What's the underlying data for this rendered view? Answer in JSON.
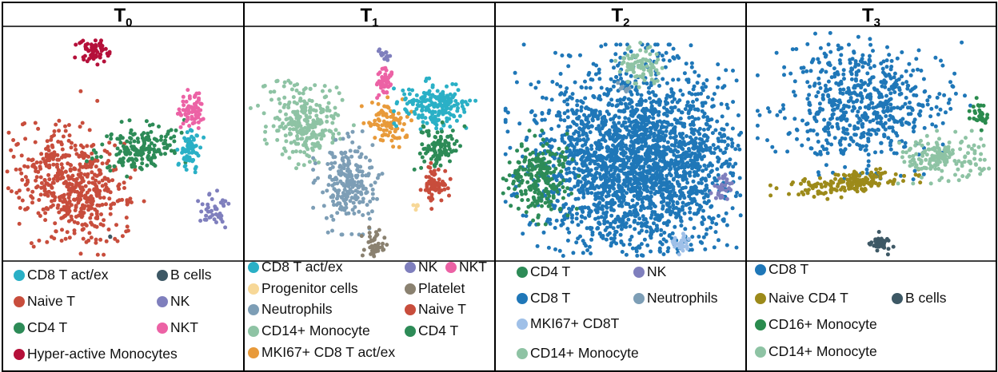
{
  "colors": {
    "CD8 T act/ex": "#2ab0c6",
    "B cells": "#3d5865",
    "Naive T": "#c84d3c",
    "NK": "#7f7fbd",
    "CD4 T": "#2d8b57",
    "NKT": "#ec62a5",
    "Hyper-active Monocytes": "#b5103a",
    "Progenitor cells": "#f7d898",
    "Platelet": "#8a8170",
    "Neutrophils": "#7d9eb6",
    "CD14+ Monocyte": "#8ec3a4",
    "MKI67+ CD8 T act/ex": "#e89a3a",
    "CD8 T": "#1f77b8",
    "MKI67+ CD8T": "#9fc0e8",
    "Naive CD4 T": "#9c8a1a",
    "CD16+ Monocyte": "#2a8b4e"
  },
  "chart_data": [
    {
      "type": "scatter",
      "title": "T",
      "subscript": "0",
      "legend": [
        "CD8 T act/ex",
        "B cells",
        "Naive T",
        "NK",
        "CD4 T",
        "NKT",
        "Hyper-active Monocytes"
      ],
      "clusters": [
        {
          "label": "Naive T",
          "x": 0.28,
          "y": 0.68,
          "sx": 0.11,
          "sy": 0.13,
          "rot": -0.55,
          "n": 520
        },
        {
          "label": "CD4 T",
          "x": 0.57,
          "y": 0.52,
          "sx": 0.09,
          "sy": 0.05,
          "rot": -0.2,
          "n": 180
        },
        {
          "label": "Hyper-active Monocytes",
          "x": 0.37,
          "y": 0.09,
          "sx": 0.03,
          "sy": 0.025,
          "rot": 0,
          "n": 70
        },
        {
          "label": "NKT",
          "x": 0.79,
          "y": 0.35,
          "sx": 0.025,
          "sy": 0.04,
          "rot": 0,
          "n": 70
        },
        {
          "label": "CD8 T act/ex",
          "x": 0.79,
          "y": 0.52,
          "sx": 0.025,
          "sy": 0.05,
          "rot": 0,
          "n": 70
        },
        {
          "label": "NK",
          "x": 0.89,
          "y": 0.8,
          "sx": 0.03,
          "sy": 0.035,
          "rot": 0,
          "n": 40
        },
        {
          "label": "B cells",
          "x": 0.45,
          "y": 0.92,
          "sx": 0.004,
          "sy": 0.004,
          "rot": 0,
          "n": 2
        }
      ]
    },
    {
      "type": "scatter",
      "title": "T",
      "subscript": "1",
      "legend": [
        "CD8 T act/ex",
        "NK",
        "NKT",
        "Progenitor cells",
        "Platelet",
        "Neutrophils",
        "Naive T",
        "CD14+ Monocyte",
        "CD4 T",
        "MKI67+ CD8 T act/ex"
      ],
      "clusters": [
        {
          "label": "CD14+ Monocyte",
          "x": 0.23,
          "y": 0.4,
          "sx": 0.07,
          "sy": 0.08,
          "rot": -0.4,
          "n": 260
        },
        {
          "label": "Neutrophils",
          "x": 0.41,
          "y": 0.67,
          "sx": 0.055,
          "sy": 0.09,
          "rot": 0,
          "n": 230
        },
        {
          "label": "MKI67+ CD8 T act/ex",
          "x": 0.57,
          "y": 0.41,
          "sx": 0.04,
          "sy": 0.05,
          "rot": 0,
          "n": 90
        },
        {
          "label": "CD8 T act/ex",
          "x": 0.77,
          "y": 0.33,
          "sx": 0.065,
          "sy": 0.05,
          "rot": 0,
          "n": 190
        },
        {
          "label": "CD4 T",
          "x": 0.79,
          "y": 0.52,
          "sx": 0.04,
          "sy": 0.045,
          "rot": 0,
          "n": 100
        },
        {
          "label": "Naive T",
          "x": 0.77,
          "y": 0.69,
          "sx": 0.025,
          "sy": 0.04,
          "rot": 0,
          "n": 70
        },
        {
          "label": "NKT",
          "x": 0.56,
          "y": 0.22,
          "sx": 0.02,
          "sy": 0.035,
          "rot": 0,
          "n": 50
        },
        {
          "label": "NK",
          "x": 0.56,
          "y": 0.11,
          "sx": 0.012,
          "sy": 0.012,
          "rot": 0,
          "n": 15
        },
        {
          "label": "Platelet",
          "x": 0.52,
          "y": 0.95,
          "sx": 0.02,
          "sy": 0.03,
          "rot": 0,
          "n": 40
        },
        {
          "label": "Progenitor cells",
          "x": 0.69,
          "y": 0.78,
          "sx": 0.008,
          "sy": 0.008,
          "rot": 0,
          "n": 6
        }
      ]
    },
    {
      "type": "scatter",
      "title": "T",
      "subscript": "2",
      "legend": [
        "CD4 T",
        "NK",
        "CD8 T",
        "Neutrophils",
        "MKI67+ CD8T",
        "CD14+ Monocyte"
      ],
      "clusters": [
        {
          "label": "CD8 T",
          "x": 0.57,
          "y": 0.58,
          "sx": 0.21,
          "sy": 0.2,
          "rot": 0,
          "n": 2400
        },
        {
          "label": "CD4 T",
          "x": 0.17,
          "y": 0.65,
          "sx": 0.06,
          "sy": 0.08,
          "rot": 0,
          "n": 230
        },
        {
          "label": "CD14+ Monocyte",
          "x": 0.58,
          "y": 0.15,
          "sx": 0.045,
          "sy": 0.04,
          "rot": 0,
          "n": 90
        },
        {
          "label": "Neutrophils",
          "x": 0.51,
          "y": 0.25,
          "sx": 0.01,
          "sy": 0.01,
          "rot": 0,
          "n": 10
        },
        {
          "label": "NK",
          "x": 0.92,
          "y": 0.7,
          "sx": 0.018,
          "sy": 0.03,
          "rot": 0,
          "n": 30
        },
        {
          "label": "MKI67+ CD8T",
          "x": 0.75,
          "y": 0.94,
          "sx": 0.025,
          "sy": 0.02,
          "rot": 0,
          "n": 30
        }
      ]
    },
    {
      "type": "scatter",
      "title": "T",
      "subscript": "3",
      "legend": [
        "CD8 T",
        "Naive CD4 T",
        "B cells",
        "CD16+ Monocyte",
        "CD14+ Monocyte"
      ],
      "clusters": [
        {
          "label": "CD8 T",
          "x": 0.47,
          "y": 0.32,
          "sx": 0.17,
          "sy": 0.13,
          "rot": 0,
          "n": 600
        },
        {
          "label": "Naive CD4 T",
          "x": 0.39,
          "y": 0.68,
          "sx": 0.12,
          "sy": 0.025,
          "rot": -0.12,
          "n": 170
        },
        {
          "label": "CD14+ Monocyte",
          "x": 0.8,
          "y": 0.56,
          "sx": 0.08,
          "sy": 0.045,
          "rot": 0,
          "n": 170
        },
        {
          "label": "CD16+ Monocyte",
          "x": 0.95,
          "y": 0.37,
          "sx": 0.018,
          "sy": 0.03,
          "rot": 0,
          "n": 30
        },
        {
          "label": "B cells",
          "x": 0.54,
          "y": 0.94,
          "sx": 0.02,
          "sy": 0.02,
          "rot": 0,
          "n": 40
        }
      ]
    }
  ]
}
